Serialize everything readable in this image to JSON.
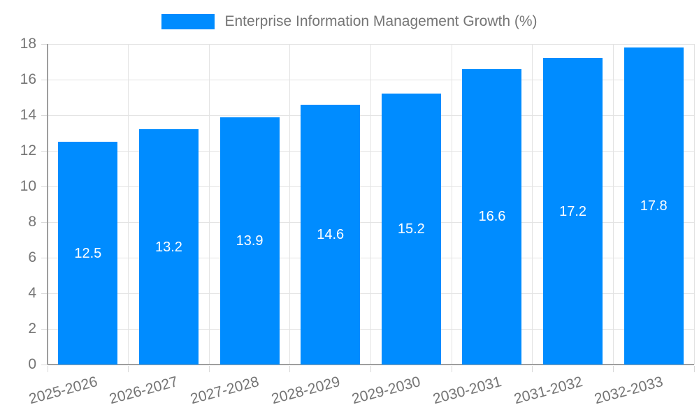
{
  "chart_data": {
    "type": "bar",
    "legend_label": "Enterprise Information Management Growth (%)",
    "categories": [
      "2025-2026",
      "2026-2027",
      "2027-2028",
      "2028-2029",
      "2029-2030",
      "2030-2031",
      "2031-2032",
      "2032-2033"
    ],
    "values": [
      12.5,
      13.2,
      13.9,
      14.6,
      15.2,
      16.6,
      17.2,
      17.8
    ],
    "bar_labels": [
      "12.5",
      "13.2",
      "13.9",
      "14.6",
      "15.2",
      "16.6",
      "17.2",
      "17.8"
    ],
    "ylim": [
      0,
      18
    ],
    "yticks": [
      0,
      2,
      4,
      6,
      8,
      10,
      12,
      14,
      16,
      18
    ],
    "grid": true,
    "legend_position": "top-center",
    "x_label_rotation_deg": -15,
    "colors": {
      "bar": "#008cff",
      "bar_label_text": "#ffffff",
      "axis_text": "#757575",
      "gridline": "#e3e3e3",
      "tick": "#d9d9d9",
      "axis_line": "#9e9e9e",
      "background": "#ffffff"
    }
  }
}
